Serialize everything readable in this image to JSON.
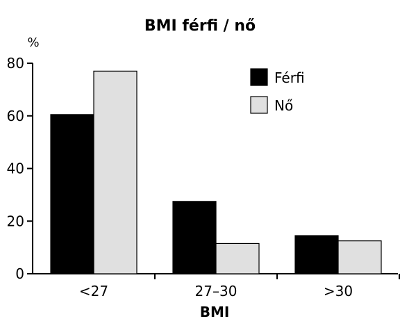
{
  "chart_data": {
    "type": "bar",
    "title": "BMI férfi / nő",
    "xlabel": "BMI",
    "ylabel": "",
    "y_unit": "%",
    "categories": [
      "<27",
      "27–30",
      ">30"
    ],
    "ylim": [
      0,
      80
    ],
    "yticks": [
      "0",
      "20",
      "40",
      "60",
      "80"
    ],
    "grid": false,
    "legend_position": "top-right",
    "series": [
      {
        "name": "Férfi",
        "values": [
          60.5,
          27.5,
          14.5
        ],
        "color": "#000000"
      },
      {
        "name": "Nő",
        "values": [
          77,
          11.5,
          12.5
        ],
        "color": "#e0e0e0"
      }
    ]
  }
}
